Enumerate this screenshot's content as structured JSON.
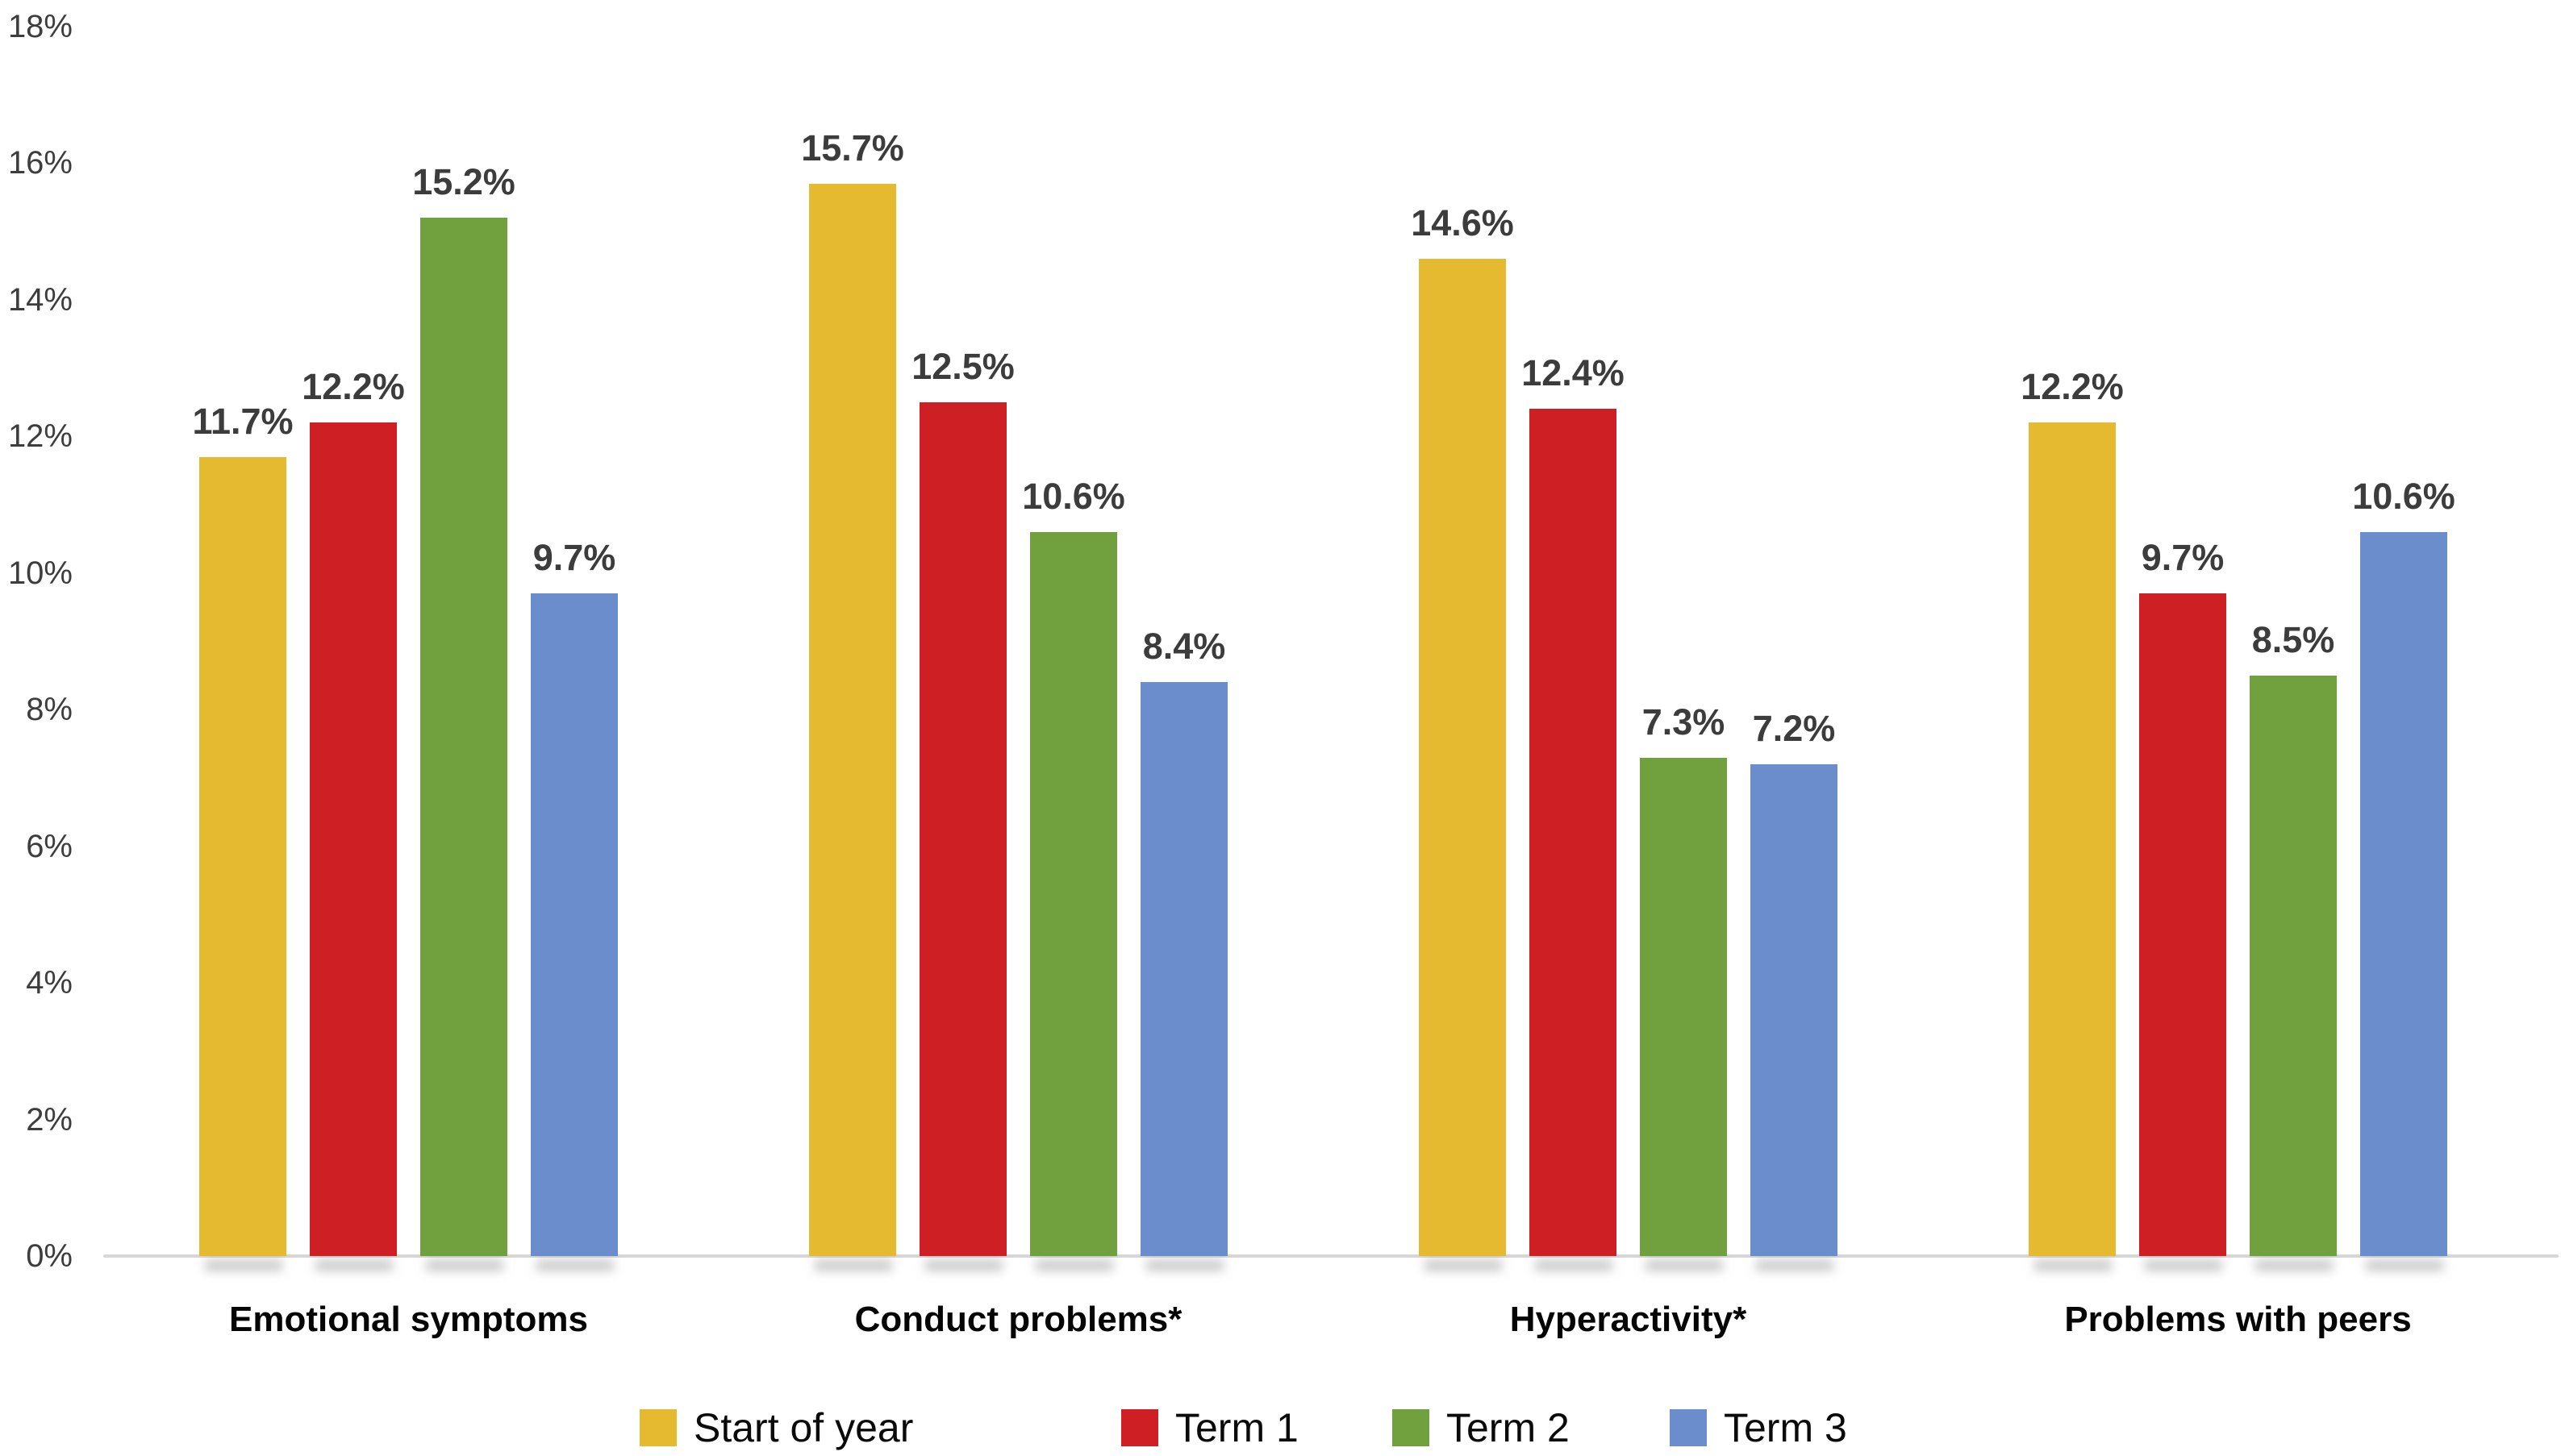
{
  "chart_data": {
    "type": "bar",
    "title": "",
    "xlabel": "",
    "ylabel": "",
    "categories": [
      "Emotional symptoms",
      "Conduct problems*",
      "Hyperactivity*",
      "Problems with peers"
    ],
    "series": [
      {
        "name": "Start of year",
        "color": "#E6BA30",
        "values": [
          11.7,
          15.7,
          14.6,
          12.2
        ],
        "labels": [
          "11.7%",
          "15.7%",
          "14.6%",
          "12.2%"
        ]
      },
      {
        "name": "Term 1",
        "color": "#CE1F25",
        "values": [
          12.2,
          12.5,
          12.4,
          9.7
        ],
        "labels": [
          "12.2%",
          "12.5%",
          "12.4%",
          "9.7%"
        ]
      },
      {
        "name": "Term 2",
        "color": "#71A03E",
        "values": [
          15.2,
          10.6,
          7.3,
          8.5
        ],
        "labels": [
          "15.2%",
          "10.6%",
          "7.3%",
          "8.5%"
        ]
      },
      {
        "name": "Term 3",
        "color": "#6B8DCC",
        "values": [
          9.7,
          8.4,
          7.2,
          10.6
        ],
        "labels": [
          "9.7%",
          "8.4%",
          "7.2%",
          "10.6%"
        ]
      }
    ],
    "ylim": [
      0,
      18
    ],
    "ytick_labels": [
      "0%",
      "2%",
      "4%",
      "6%",
      "8%",
      "10%",
      "12%",
      "14%",
      "16%",
      "18%"
    ],
    "ytick_step": 2,
    "grid": false,
    "legend_position": "bottom",
    "axis_line_color": "#D7D7D7",
    "value_label_color": "#3c3c3c",
    "tick_label_color": "#3d3d3d",
    "category_label_color": "#050505",
    "background_color": "#FFFFFF"
  }
}
